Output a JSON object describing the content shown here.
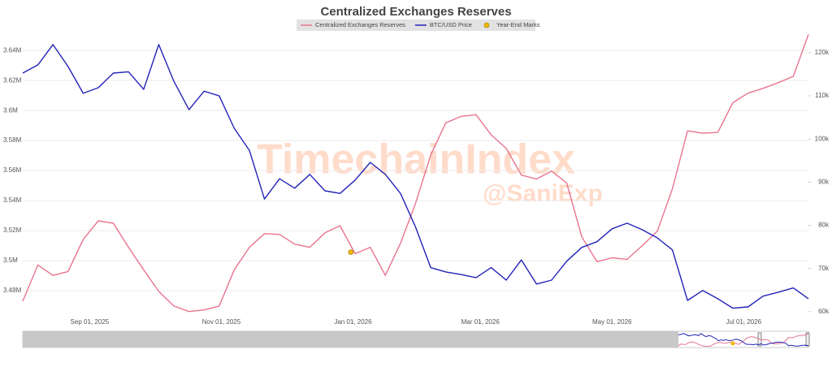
{
  "chart_data": {
    "type": "line",
    "title": "Centralized Exchanges Reserves",
    "watermark": "TimechainIndex",
    "watermark_sub": "@SaniExp",
    "x": [
      "2025-08-01",
      "2025-08-08",
      "2025-08-15",
      "2025-08-22",
      "2025-08-29",
      "2025-09-05",
      "2025-09-12",
      "2025-09-19",
      "2025-09-26",
      "2025-10-03",
      "2025-10-10",
      "2025-10-17",
      "2025-10-24",
      "2025-10-31",
      "2025-11-07",
      "2025-11-14",
      "2025-11-21",
      "2025-11-28",
      "2025-12-05",
      "2025-12-12",
      "2025-12-19",
      "2025-12-26",
      "2026-01-02",
      "2026-01-09",
      "2026-01-16",
      "2026-01-23",
      "2026-01-30",
      "2026-02-06",
      "2026-02-13",
      "2026-02-20",
      "2026-02-27",
      "2026-03-06",
      "2026-03-13",
      "2026-03-20",
      "2026-03-27",
      "2026-04-03",
      "2026-04-10",
      "2026-04-17",
      "2026-04-24",
      "2026-05-01",
      "2026-05-08",
      "2026-05-15",
      "2026-05-22",
      "2026-05-29",
      "2026-06-05",
      "2026-06-12",
      "2026-06-19",
      "2026-06-26",
      "2026-07-03",
      "2026-07-10",
      "2026-07-17",
      "2026-07-24",
      "2026-07-31"
    ],
    "series": [
      {
        "name": "Centralized Exchanges Reserves",
        "color": "#e8748f",
        "values": [
          3473000,
          3497100,
          3490200,
          3492800,
          3514200,
          3526500,
          3524900,
          3508900,
          3493900,
          3479500,
          3469800,
          3466100,
          3467200,
          3469800,
          3493900,
          3508900,
          3518000,
          3517500,
          3511000,
          3508900,
          3518500,
          3523300,
          3504600,
          3508900,
          3490200,
          3511600,
          3538300,
          3570400,
          3591800,
          3596100,
          3597200,
          3583800,
          3574700,
          3557000,
          3554400,
          3559700,
          3551700,
          3515800,
          3499300,
          3501900,
          3500900,
          3510000,
          3519600,
          3547900,
          3586500,
          3584900,
          3585400,
          3605200,
          3611600,
          3614800,
          3618600,
          3622800,
          3650700
        ]
      },
      {
        "name": "BTC/USD Price",
        "color": "#2323b8",
        "axis": "y2",
        "values": [
          115300,
          117200,
          121900,
          116800,
          110600,
          111900,
          115300,
          115600,
          111500,
          121900,
          113400,
          106800,
          111100,
          110000,
          102500,
          97400,
          86100,
          90800,
          88600,
          91800,
          88000,
          87400,
          90500,
          94600,
          91800,
          87400,
          79600,
          70200,
          69200,
          68600,
          67900,
          70200,
          67300,
          72000,
          66400,
          67300,
          71700,
          74900,
          76200,
          79200,
          80500,
          79000,
          77100,
          74300,
          62600,
          64900,
          63000,
          60800,
          61100,
          63600,
          64500,
          65500,
          63000
        ]
      },
      {
        "name": "Year-End Marks",
        "color": "#f2b600",
        "marker": true,
        "x": [
          "2025-12-31"
        ],
        "values": [
          3505700
        ]
      }
    ],
    "xlim": [
      "2025-08-01",
      "2026-07-31"
    ],
    "xticks": [
      {
        "value": "2025-09-01",
        "label": "Sep 01, 2025"
      },
      {
        "value": "2025-11-01",
        "label": "Nov 01, 2025"
      },
      {
        "value": "2026-01-01",
        "label": "Jan 01, 2026"
      },
      {
        "value": "2026-03-01",
        "label": "Mar 01, 2026"
      },
      {
        "value": "2026-05-01",
        "label": "May 01, 2026"
      },
      {
        "value": "2026-07-01",
        "label": "Jul 01, 2026"
      }
    ],
    "ylim": [
      3460000,
      3652000
    ],
    "yticks": [
      {
        "value": 3480000,
        "label": "3.48M"
      },
      {
        "value": 3500000,
        "label": "3.5M"
      },
      {
        "value": 3520000,
        "label": "3.52M"
      },
      {
        "value": 3540000,
        "label": "3.54M"
      },
      {
        "value": 3560000,
        "label": "3.56M"
      },
      {
        "value": 3580000,
        "label": "3.58M"
      },
      {
        "value": 3600000,
        "label": "3.6M"
      },
      {
        "value": 3620000,
        "label": "3.62M"
      },
      {
        "value": 3640000,
        "label": "3.64M"
      }
    ],
    "y2lim": [
      57900,
      124700
    ],
    "y2ticks": [
      {
        "value": 60000,
        "label": "60k"
      },
      {
        "value": 70000,
        "label": "70k"
      },
      {
        "value": 80000,
        "label": "80k"
      },
      {
        "value": 90000,
        "label": "90k"
      },
      {
        "value": 100000,
        "label": "100k"
      },
      {
        "value": 110000,
        "label": "110k"
      },
      {
        "value": 120000,
        "label": "120k"
      }
    ],
    "grid": true,
    "legend": "top"
  }
}
